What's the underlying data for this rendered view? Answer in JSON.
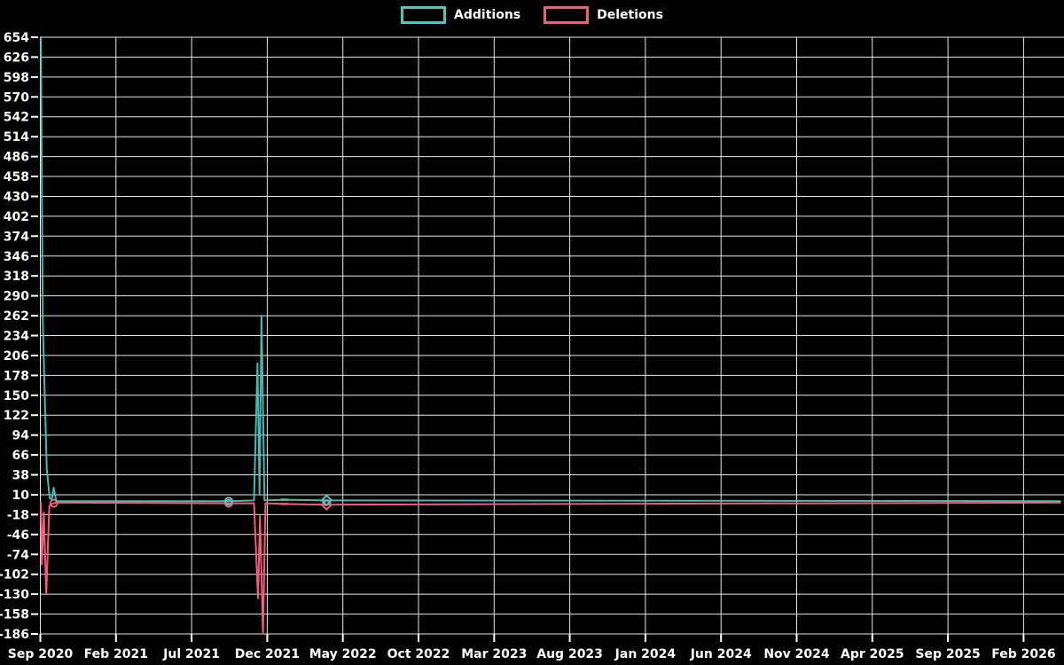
{
  "legend": {
    "items": [
      {
        "label": "Additions",
        "color": "#4cc8c0"
      },
      {
        "label": "Deletions",
        "color": "#f25d7c"
      }
    ]
  },
  "chart_data": {
    "type": "line",
    "title": "",
    "xlabel": "",
    "ylabel": "",
    "background_color": "#000000",
    "gridline_color": "#e8e8e8",
    "tick_text_color": "#ffffff",
    "grid": true,
    "legend_position": "top-center",
    "y_axis": {
      "max": 654,
      "min": -186,
      "step": 28
    },
    "y_tick_labels": [
      "654",
      "626",
      "598",
      "570",
      "542",
      "514",
      "486",
      "458",
      "430",
      "402",
      "374",
      "346",
      "318",
      "290",
      "262",
      "234",
      "206",
      "178",
      "150",
      "122",
      "94",
      "66",
      "38",
      "10",
      "-18",
      "-46",
      "-74",
      "-102",
      "-130",
      "-158",
      "-186"
    ],
    "x_tick_labels": [
      "Sep 2020",
      "Feb 2021",
      "Jul 2021",
      "Dec 2021",
      "May 2022",
      "Oct 2022",
      "Mar 2023",
      "Aug 2023",
      "Jan 2024",
      "Jun 2024",
      "Nov 2024",
      "Apr 2025",
      "Sep 2025",
      "Feb 2026"
    ],
    "series": [
      {
        "name": "Additions",
        "color": "#4cc8c0",
        "points": [
          [
            "2020-09-02",
            654
          ],
          [
            "2020-09-06",
            254
          ],
          [
            "2020-09-10",
            148
          ],
          [
            "2020-09-14",
            45
          ],
          [
            "2020-09-20",
            5
          ],
          [
            "2020-09-24",
            4
          ],
          [
            "2020-09-28",
            20
          ],
          [
            "2020-10-03",
            1
          ],
          [
            "2021-09-15",
            1
          ],
          [
            "2021-11-05",
            2
          ],
          [
            "2021-11-12",
            195
          ],
          [
            "2021-11-16",
            12
          ],
          [
            "2021-11-20",
            262
          ],
          [
            "2021-11-26",
            2
          ],
          [
            "2022-01-05",
            3
          ],
          [
            "2022-03-31",
            2
          ],
          [
            "2026-04-15",
            1
          ]
        ]
      },
      {
        "name": "Deletions",
        "color": "#f25d7c",
        "points": [
          [
            "2020-09-02",
            -1
          ],
          [
            "2020-09-04",
            -88
          ],
          [
            "2020-09-08",
            -15
          ],
          [
            "2020-09-13",
            -130
          ],
          [
            "2020-09-19",
            -6
          ],
          [
            "2020-09-23",
            -3
          ],
          [
            "2020-09-28",
            -2
          ],
          [
            "2020-10-03",
            -1
          ],
          [
            "2021-09-15",
            -2
          ],
          [
            "2021-11-05",
            -2
          ],
          [
            "2021-11-13",
            -136
          ],
          [
            "2021-11-17",
            -20
          ],
          [
            "2021-11-23",
            -186
          ],
          [
            "2021-11-28",
            -2
          ],
          [
            "2022-01-05",
            -3
          ],
          [
            "2022-03-31",
            -4
          ],
          [
            "2026-04-15",
            -1
          ]
        ]
      }
    ],
    "markers": [
      {
        "series": "Deletions",
        "shape": "circle",
        "date": "2020-09-28",
        "value": -2
      },
      {
        "series": "Additions",
        "shape": "circle",
        "date": "2021-09-15",
        "value": 1
      },
      {
        "series": "Deletions",
        "shape": "circle",
        "date": "2021-09-15",
        "value": -2
      },
      {
        "series": "Additions",
        "shape": "dash",
        "date": "2022-01-05",
        "value": 3
      },
      {
        "series": "Deletions",
        "shape": "dash",
        "date": "2022-01-05",
        "value": -3
      },
      {
        "series": "Additions",
        "shape": "diamond",
        "date": "2022-03-31",
        "value": 2
      },
      {
        "series": "Deletions",
        "shape": "diamond",
        "date": "2022-03-31",
        "value": -4
      }
    ]
  }
}
